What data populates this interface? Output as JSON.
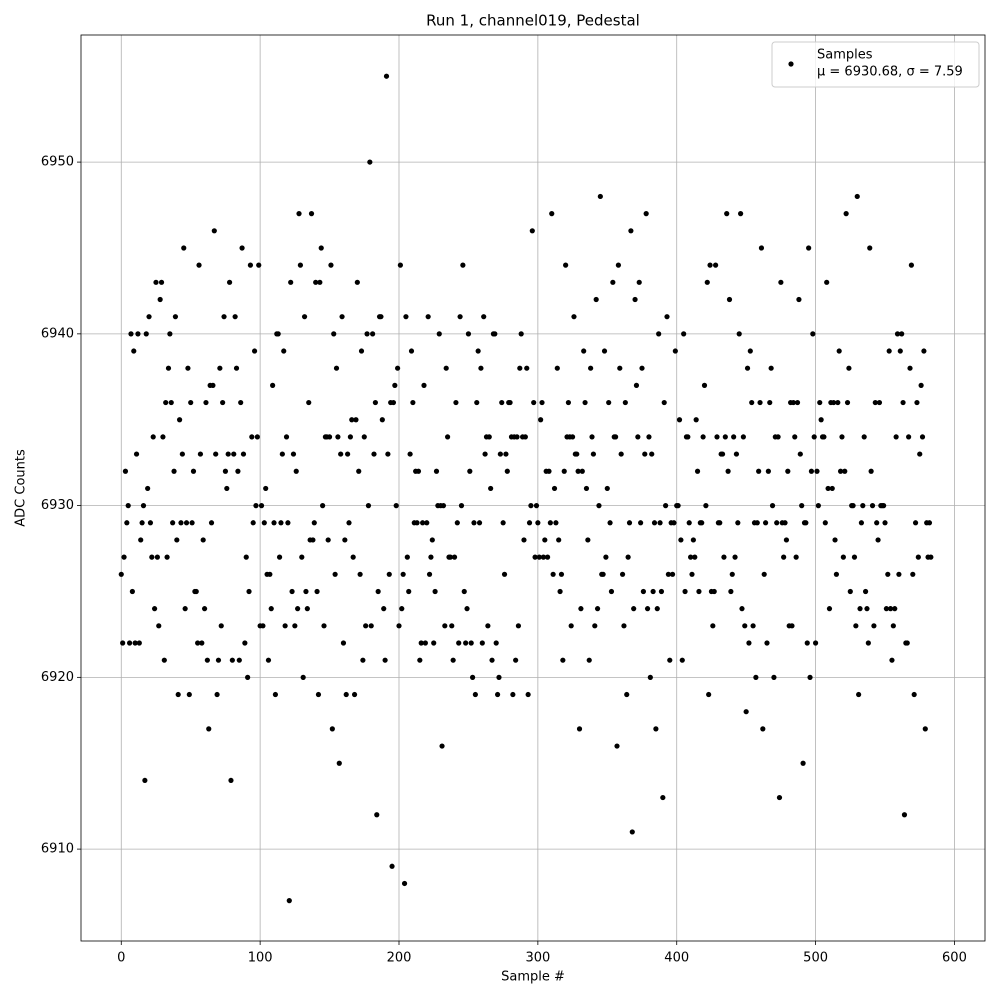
{
  "chart_data": {
    "type": "scatter",
    "title": "Run 1, channel019, Pedestal",
    "xlabel": "Sample #",
    "ylabel": "ADC Counts",
    "xlim": [
      -29,
      622
    ],
    "ylim": [
      6904.65,
      6957.4
    ],
    "xticks": [
      0,
      100,
      200,
      300,
      400,
      500,
      600
    ],
    "yticks": [
      6910,
      6920,
      6930,
      6940,
      6950
    ],
    "grid": true,
    "legend": "upper right",
    "x": [
      0,
      1,
      2,
      3,
      4,
      5,
      6,
      7,
      8,
      9,
      10,
      11,
      12,
      13,
      14,
      15,
      16,
      17,
      18,
      19,
      20,
      21,
      22,
      23,
      24,
      25,
      26,
      27,
      28,
      29,
      30,
      31,
      32,
      33,
      34,
      35,
      36,
      37,
      38,
      39,
      40,
      41,
      42,
      43,
      44,
      45,
      46,
      47,
      48,
      49,
      50,
      51,
      52,
      53,
      54,
      55,
      56,
      57,
      58,
      59,
      60,
      61,
      62,
      63,
      64,
      65,
      66,
      67,
      68,
      69,
      70,
      71,
      72,
      73,
      74,
      75,
      76,
      77,
      78,
      79,
      80,
      81,
      82,
      83,
      84,
      85,
      86,
      87,
      88,
      89,
      90,
      91,
      92,
      93,
      94,
      95,
      96,
      97,
      98,
      99,
      100,
      101,
      102,
      103,
      104,
      105,
      106,
      107,
      108,
      109,
      110,
      111,
      112,
      113,
      114,
      115,
      116,
      117,
      118,
      119,
      120,
      121,
      122,
      123,
      124,
      125,
      126,
      127,
      128,
      129,
      130,
      131,
      132,
      133,
      134,
      135,
      136,
      137,
      138,
      139,
      140,
      141,
      142,
      143,
      144,
      145,
      146,
      147,
      148,
      149,
      150,
      151,
      152,
      153,
      154,
      155,
      156,
      157,
      158,
      159,
      160,
      161,
      162,
      163,
      164,
      165,
      166,
      167,
      168,
      169,
      170,
      171,
      172,
      173,
      174,
      175,
      176,
      177,
      178,
      179,
      180,
      181,
      182,
      183,
      184,
      185,
      186,
      187,
      188,
      189,
      190,
      191,
      192,
      193,
      194,
      195,
      196,
      197,
      198,
      199,
      200,
      201,
      202,
      203,
      204,
      205,
      206,
      207,
      208,
      209,
      210,
      211,
      212,
      213,
      214,
      215,
      216,
      217,
      218,
      219,
      220,
      221,
      222,
      223,
      224,
      225,
      226,
      227,
      228,
      229,
      230,
      231,
      232,
      233,
      234,
      235,
      236,
      237,
      238,
      239,
      240,
      241,
      242,
      243,
      244,
      245,
      246,
      247,
      248,
      249,
      250,
      251,
      252,
      253,
      254,
      255,
      256,
      257,
      258,
      259,
      260,
      261,
      262,
      263,
      264,
      265,
      266,
      267,
      268,
      269,
      270,
      271,
      272,
      273,
      274,
      275,
      276,
      277,
      278,
      279,
      280,
      281,
      282,
      283,
      284,
      285,
      286,
      287,
      288,
      289,
      290,
      291,
      292,
      293,
      294,
      295,
      296,
      297,
      298,
      299,
      300,
      301,
      302,
      303,
      304,
      305,
      306,
      307,
      308,
      309,
      310,
      311,
      312,
      313,
      314,
      315,
      316,
      317,
      318,
      319,
      320,
      321,
      322,
      323,
      324,
      325,
      326,
      327,
      328,
      329,
      330,
      331,
      332,
      333,
      334,
      335,
      336,
      337,
      338,
      339,
      340,
      341,
      342,
      343,
      344,
      345,
      346,
      347,
      348,
      349,
      350,
      351,
      352,
      353,
      354,
      355,
      356,
      357,
      358,
      359,
      360,
      361,
      362,
      363,
      364,
      365,
      366,
      367,
      368,
      369,
      370,
      371,
      372,
      373,
      374,
      375,
      376,
      377,
      378,
      379,
      380,
      381,
      382,
      383,
      384,
      385,
      386,
      387,
      388,
      389,
      390,
      391,
      392,
      393,
      394,
      395,
      396,
      397,
      398,
      399,
      400,
      401,
      402,
      403,
      404,
      405,
      406,
      407,
      408,
      409,
      410,
      411,
      412,
      413,
      414,
      415,
      416,
      417,
      418,
      419,
      420,
      421,
      422,
      423,
      424,
      425,
      426,
      427,
      428,
      429,
      430,
      431,
      432,
      433,
      434,
      435,
      436,
      437,
      438,
      439,
      440,
      441,
      442,
      443,
      444,
      445,
      446,
      447,
      448,
      449,
      450,
      451,
      452,
      453,
      454,
      455,
      456,
      457,
      458,
      459,
      460,
      461,
      462,
      463,
      464,
      465,
      466,
      467,
      468,
      469,
      470,
      471,
      472,
      473,
      474,
      475,
      476,
      477,
      478,
      479,
      480,
      481,
      482,
      483,
      484,
      485,
      486,
      487,
      488,
      489,
      490,
      491,
      492,
      493,
      494,
      495,
      496,
      497,
      498,
      499,
      500,
      501,
      502,
      503,
      504,
      505,
      506,
      507,
      508,
      509,
      510,
      511,
      512,
      513,
      514,
      515,
      516,
      517,
      518,
      519,
      520,
      521,
      522,
      523,
      524,
      525,
      526,
      527,
      528,
      529,
      530,
      531,
      532,
      533,
      534,
      535,
      536,
      537,
      538,
      539,
      540,
      541,
      542,
      543,
      544,
      545,
      546,
      547,
      548,
      549,
      550,
      551,
      552,
      553,
      554,
      555,
      556,
      557,
      558,
      559,
      560,
      561,
      562,
      563,
      564,
      565,
      566,
      567,
      568,
      569,
      570,
      571,
      572,
      573,
      574,
      575,
      576,
      577,
      578,
      579,
      580,
      581,
      582,
      583
    ],
    "series": [
      {
        "name": "Samples",
        "stats": "μ = 6930.68, σ = 7.59",
        "color": "#000000",
        "values": [
          6926,
          6922,
          6927,
          6932,
          6929,
          6930,
          6922,
          6940,
          6925,
          6939,
          6922,
          6933,
          6940,
          6922,
          6928,
          6929,
          6930,
          6914,
          6940,
          6931,
          6941,
          6929,
          6927,
          6934,
          6924,
          6943,
          6927,
          6923,
          6942,
          6943,
          6934,
          6921,
          6936,
          6927,
          6938,
          6940,
          6936,
          6929,
          6932,
          6941,
          6928,
          6919,
          6935,
          6929,
          6933,
          6945,
          6924,
          6929,
          6938,
          6919,
          6936,
          6929,
          6932,
          6925,
          6925,
          6922,
          6944,
          6933,
          6922,
          6928,
          6924,
          6936,
          6921,
          6917,
          6937,
          6929,
          6937,
          6946,
          6933,
          6919,
          6921,
          6938,
          6923,
          6936,
          6941,
          6932,
          6931,
          6933,
          6943,
          6914,
          6921,
          6933,
          6941,
          6938,
          6932,
          6921,
          6936,
          6945,
          6933,
          6922,
          6927,
          6920,
          6925,
          6944,
          6934,
          6929,
          6939,
          6930,
          6934,
          6944,
          6923,
          6930,
          6923,
          6929,
          6931,
          6926,
          6921,
          6926,
          6924,
          6937,
          6929,
          6919,
          6940,
          6940,
          6927,
          6929,
          6933,
          6939,
          6923,
          6934,
          6929,
          6907,
          6943,
          6925,
          6933,
          6923,
          6932,
          6924,
          6947,
          6944,
          6927,
          6920,
          6941,
          6925,
          6924,
          6936,
          6928,
          6947,
          6928,
          6929,
          6943,
          6925,
          6919,
          6943,
          6945,
          6930,
          6923,
          6934,
          6934,
          6928,
          6934,
          6944,
          6917,
          6940,
          6926,
          6938,
          6934,
          6915,
          6933,
          6941,
          6922,
          6928,
          6919,
          6933,
          6929,
          6934,
          6935,
          6927,
          6919,
          6935,
          6943,
          6932,
          6926,
          6939,
          6921,
          6934,
          6923,
          6940,
          6930,
          6950,
          6923,
          6940,
          6933,
          6936,
          6912,
          6925,
          6941,
          6941,
          6935,
          6924,
          6921,
          6955,
          6933,
          6926,
          6936,
          6909,
          6936,
          6937,
          6930,
          6938,
          6923,
          6944,
          6924,
          6926,
          6908,
          6941,
          6927,
          6925,
          6933,
          6939,
          6936,
          6929,
          6932,
          6929,
          6932,
          6921,
          6922,
          6929,
          6937,
          6922,
          6929,
          6941,
          6926,
          6927,
          6928,
          6922,
          6925,
          6932,
          6930,
          6940,
          6930,
          6916,
          6930,
          6923,
          6938,
          6934,
          6927,
          6927,
          6923,
          6921,
          6927,
          6936,
          6929,
          6922,
          6941,
          6930,
          6944,
          6925,
          6922,
          6924,
          6940,
          6932,
          6922,
          6920,
          6929,
          6919,
          6936,
          6939,
          6929,
          6938,
          6922,
          6941,
          6933,
          6934,
          6923,
          6934,
          6931,
          6921,
          6940,
          6940,
          6922,
          6919,
          6920,
          6933,
          6936,
          6929,
          6926,
          6933,
          6932,
          6936,
          6936,
          6934,
          6919,
          6934,
          6921,
          6934,
          6923,
          6938,
          6940,
          6934,
          6928,
          6934,
          6938,
          6919,
          6929,
          6930,
          6946,
          6936,
          6927,
          6930,
          6929,
          6927,
          6935,
          6936,
          6927,
          6928,
          6932,
          6927,
          6932,
          6929,
          6947,
          6926,
          6931,
          6929,
          6938,
          6928,
          6925,
          6926,
          6921,
          6932,
          6944,
          6934,
          6936,
          6934,
          6923,
          6934,
          6941,
          6933,
          6933,
          6932,
          6917,
          6924,
          6932,
          6939,
          6936,
          6931,
          6928,
          6921,
          6938,
          6934,
          6933,
          6923,
          6942,
          6924,
          6930,
          6948,
          6926,
          6926,
          6939,
          6927,
          6931,
          6936,
          6929,
          6925,
          6943,
          6934,
          6934,
          6916,
          6944,
          6938,
          6933,
          6926,
          6923,
          6936,
          6919,
          6927,
          6929,
          6946,
          6911,
          6924,
          6942,
          6937,
          6934,
          6943,
          6929,
          6938,
          6925,
          6933,
          6947,
          6924,
          6934,
          6920,
          6933,
          6925,
          6929,
          6917,
          6924,
          6940,
          6929,
          6925,
          6913,
          6936,
          6930,
          6941,
          6926,
          6921,
          6929,
          6926,
          6929,
          6939,
          6930,
          6930,
          6935,
          6928,
          6921,
          6940,
          6925,
          6934,
          6934,
          6929,
          6927,
          6926,
          6928,
          6927,
          6935,
          6932,
          6925,
          6929,
          6929,
          6934,
          6937,
          6930,
          6943,
          6919,
          6944,
          6925,
          6923,
          6925,
          6944,
          6934,
          6929,
          6929,
          6933,
          6933,
          6927,
          6934,
          6947,
          6932,
          6942,
          6925,
          6926,
          6934,
          6927,
          6933,
          6929,
          6940,
          6947,
          6924,
          6934,
          6923,
          6918,
          6938,
          6922,
          6939,
          6936,
          6923,
          6929,
          6920,
          6929,
          6932,
          6936,
          6945,
          6917,
          6926,
          6929,
          6922,
          6932,
          6936,
          6938,
          6930,
          6920,
          6934,
          6929,
          6934,
          6913,
          6943,
          6929,
          6927,
          6929,
          6928,
          6932,
          6923,
          6936,
          6923,
          6936,
          6934,
          6927,
          6936,
          6942,
          6933,
          6930,
          6915,
          6929,
          6929,
          6922,
          6945,
          6920,
          6932,
          6940,
          6934,
          6922,
          6932,
          6930,
          6936,
          6935,
          6934,
          6934,
          6929,
          6943,
          6931,
          6924,
          6936,
          6931,
          6936,
          6928,
          6926,
          6936,
          6939,
          6932,
          6934,
          6927,
          6932,
          6947,
          6936,
          6938,
          6925,
          6930,
          6930,
          6927,
          6923,
          6948,
          6919,
          6924,
          6929,
          6930,
          6934,
          6925,
          6924,
          6922,
          6945,
          6932,
          6930,
          6923,
          6936,
          6929,
          6928,
          6936,
          6930,
          6930,
          6930,
          6929,
          6924,
          6926,
          6939,
          6924,
          6921,
          6923,
          6924,
          6934,
          6940,
          6926,
          6939,
          6940,
          6936,
          6912,
          6922,
          6922,
          6934,
          6938,
          6944,
          6926,
          6919,
          6929,
          6936,
          6927,
          6933,
          6937,
          6934,
          6939,
          6917,
          6929,
          6927,
          6929,
          6927
        ]
      }
    ]
  }
}
